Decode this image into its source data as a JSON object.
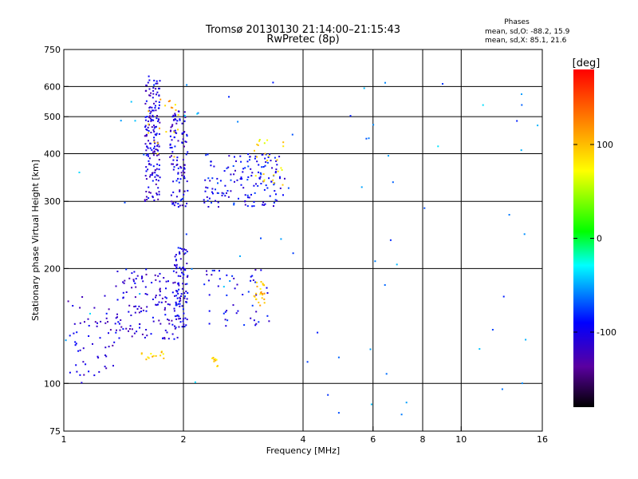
{
  "chart_data": {
    "type": "scatter",
    "title": "Tromsø 20130130 21:14:00–21:15:43",
    "subtitle": "RwPretec (8p)",
    "xlabel": "Frequency [MHz]",
    "ylabel": "Stationary phase Virtual Height [km]",
    "x_scale": "log",
    "y_scale": "log",
    "xlim": [
      1,
      16
    ],
    "ylim": [
      75,
      750
    ],
    "x_ticks": [
      1,
      2,
      4,
      6,
      8,
      10,
      16
    ],
    "x_tick_labels": [
      "1",
      "2",
      "4",
      "6",
      "8",
      "10",
      "16"
    ],
    "y_ticks": [
      75,
      100,
      200,
      300,
      400,
      500,
      600,
      750
    ],
    "y_tick_labels": [
      "75",
      "100",
      "200",
      "300",
      "400",
      "500",
      "600",
      "750"
    ],
    "grid": true,
    "stats": {
      "heading": "Phases",
      "line1": "mean, sd,O:  -88.2, 15.9",
      "line2": "mean, sd,X:  85.1, 21.6"
    },
    "colorbar": {
      "label": "[deg]",
      "range": [
        -180,
        180
      ],
      "ticks": [
        100,
        0,
        -100
      ],
      "tick_labels": [
        "100",
        "0",
        "-100"
      ]
    },
    "clusters": [
      {
        "fmin": 1.0,
        "fmax": 1.35,
        "hmin": 100,
        "hmax": 170,
        "phase": -110,
        "n": 60
      },
      {
        "fmin": 1.35,
        "fmax": 1.95,
        "hmin": 130,
        "hmax": 200,
        "phase": -110,
        "n": 140
      },
      {
        "fmin": 1.6,
        "fmax": 1.75,
        "hmin": 300,
        "hmax": 640,
        "phase": -108,
        "n": 170
      },
      {
        "fmin": 1.85,
        "fmax": 2.05,
        "hmin": 290,
        "hmax": 520,
        "phase": -105,
        "n": 110
      },
      {
        "fmin": 1.9,
        "fmax": 2.05,
        "hmin": 140,
        "hmax": 230,
        "phase": -100,
        "n": 90
      },
      {
        "fmin": 2.25,
        "fmax": 3.6,
        "hmin": 290,
        "hmax": 400,
        "phase": -95,
        "n": 150
      },
      {
        "fmin": 3.0,
        "fmax": 3.6,
        "hmin": 330,
        "hmax": 440,
        "phase": 80,
        "n": 25
      },
      {
        "fmin": 2.25,
        "fmax": 3.3,
        "hmin": 140,
        "hmax": 200,
        "phase": -100,
        "n": 50
      },
      {
        "fmin": 3.0,
        "fmax": 3.2,
        "hmin": 160,
        "hmax": 185,
        "phase": 95,
        "n": 25
      },
      {
        "fmin": 2.35,
        "fmax": 2.45,
        "hmin": 110,
        "hmax": 117,
        "phase": 95,
        "n": 10
      },
      {
        "fmin": 1.55,
        "fmax": 1.8,
        "hmin": 115,
        "hmax": 122,
        "phase": 95,
        "n": 14
      },
      {
        "fmin": 1.6,
        "fmax": 1.95,
        "hmin": 370,
        "hmax": 560,
        "phase": 100,
        "n": 20
      },
      {
        "fmin": 1.0,
        "fmax": 16,
        "hmin": 80,
        "hmax": 650,
        "phase": -60,
        "n": 70
      }
    ]
  }
}
